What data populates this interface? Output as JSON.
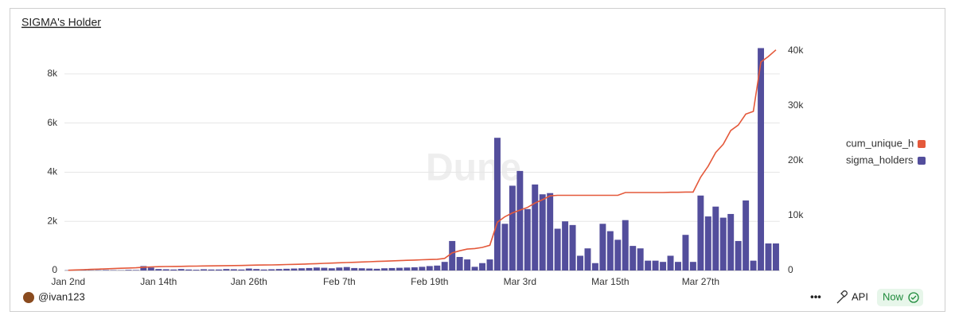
{
  "chart_data": {
    "type": "bar",
    "title": "SIGMA's Holder",
    "watermark": "Dune",
    "categories": [
      "Jan 2nd",
      null,
      null,
      null,
      null,
      null,
      null,
      null,
      null,
      null,
      null,
      null,
      "Jan 14th",
      null,
      null,
      null,
      null,
      null,
      null,
      null,
      null,
      null,
      null,
      null,
      "Jan 26th",
      null,
      null,
      null,
      null,
      null,
      null,
      null,
      null,
      null,
      null,
      null,
      "Feb 7th",
      null,
      null,
      null,
      null,
      null,
      null,
      null,
      null,
      null,
      null,
      null,
      "Feb 19th",
      null,
      null,
      null,
      null,
      null,
      null,
      null,
      null,
      null,
      null,
      null,
      "Mar 3rd",
      null,
      null,
      null,
      null,
      null,
      null,
      null,
      null,
      null,
      null,
      null,
      "Mar 15th",
      null,
      null,
      null,
      null,
      null,
      null,
      null,
      null,
      null,
      null,
      null,
      "Mar 27th",
      null,
      null,
      null,
      null,
      null,
      null,
      null,
      null,
      null,
      null
    ],
    "series": [
      {
        "name": "cum_unique_holders",
        "type": "line",
        "axis": "y2",
        "color": "#e4593b",
        "values": [
          50,
          100,
          150,
          200,
          250,
          300,
          350,
          400,
          450,
          500,
          600,
          650,
          700,
          720,
          740,
          760,
          780,
          800,
          820,
          840,
          860,
          880,
          900,
          920,
          950,
          980,
          1000,
          1020,
          1050,
          1080,
          1110,
          1150,
          1200,
          1250,
          1300,
          1350,
          1400,
          1450,
          1500,
          1550,
          1600,
          1650,
          1700,
          1750,
          1800,
          1850,
          1900,
          1950,
          2000,
          2050,
          2200,
          3200,
          3600,
          3900,
          4000,
          4200,
          4600,
          8800,
          9800,
          10500,
          11000,
          11500,
          12300,
          12900,
          13600,
          13700,
          13700,
          13700,
          13700,
          13700,
          13700,
          13700,
          13700,
          13700,
          14200,
          14200,
          14200,
          14200,
          14200,
          14200,
          14250,
          14250,
          14300,
          14300,
          17000,
          19000,
          21500,
          23000,
          25500,
          26500,
          28500,
          29000,
          38000,
          39000,
          40200
        ]
      },
      {
        "name": "sigma_holders",
        "type": "bar",
        "axis": "y",
        "color": "#534e9c",
        "values": [
          10,
          20,
          15,
          10,
          15,
          20,
          15,
          10,
          25,
          20,
          180,
          120,
          60,
          50,
          40,
          60,
          40,
          30,
          50,
          40,
          40,
          60,
          50,
          40,
          80,
          60,
          40,
          50,
          60,
          70,
          80,
          90,
          100,
          120,
          110,
          90,
          120,
          140,
          100,
          90,
          80,
          70,
          90,
          100,
          110,
          120,
          130,
          150,
          180,
          200,
          350,
          1200,
          550,
          450,
          150,
          300,
          450,
          5400,
          1900,
          3450,
          4050,
          2500,
          3500,
          3100,
          3150,
          1700,
          2000,
          1850,
          600,
          900,
          300,
          1900,
          1600,
          1250,
          2050,
          1000,
          900,
          400,
          400,
          350,
          600,
          350,
          1450,
          350,
          3050,
          2200,
          2600,
          2150,
          2300,
          1200,
          2850,
          400,
          9050,
          1100,
          1100
        ]
      }
    ],
    "ylim": [
      0,
      9000
    ],
    "yticks": [
      0,
      {
        "value": 2000,
        "label": "2k"
      },
      {
        "value": 4000,
        "label": "4k"
      },
      {
        "value": 6000,
        "label": "6k"
      },
      {
        "value": 8000,
        "label": "8k"
      }
    ],
    "y2lim": [
      0,
      40300
    ],
    "y2ticks": [
      0,
      {
        "value": 10000,
        "label": "10k"
      },
      {
        "value": 20000,
        "label": "20k"
      },
      {
        "value": 30000,
        "label": "30k"
      },
      {
        "value": 40000,
        "label": "40k"
      }
    ],
    "grid": true,
    "legend": "right"
  },
  "footer": {
    "user": "@ivan123",
    "api": "API",
    "status": "Now"
  }
}
